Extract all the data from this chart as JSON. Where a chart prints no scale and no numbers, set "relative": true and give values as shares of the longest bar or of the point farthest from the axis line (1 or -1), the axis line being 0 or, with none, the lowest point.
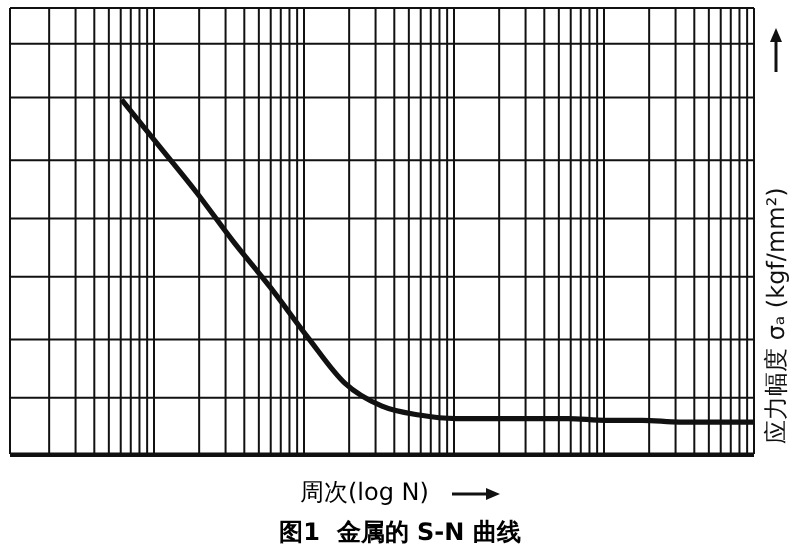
{
  "chart_data": {
    "type": "line",
    "title": "图1  金属的 S-N 曲线",
    "xlabel": "周次(log N)",
    "ylabel": "应力幅度 σₐ (kgf/mm²)",
    "relative": true,
    "grid": true,
    "marker": "none",
    "line_style": "solid",
    "categories": [
      null,
      null,
      null,
      null,
      null,
      null,
      null,
      null,
      null,
      null,
      null,
      null,
      null,
      null,
      null,
      null,
      null,
      null,
      null,
      null,
      null
    ],
    "series": [
      {
        "color": "#111111",
        "values": [
          null,
          null,
          null,
          1,
          0.87,
          0.74,
          0.6,
          0.47,
          0.33,
          0.2,
          0.135,
          0.11,
          0.1,
          0.1,
          0.1,
          0.1,
          0.095,
          0.095,
          0.09,
          0.09,
          0.09
        ]
      }
    ]
  }
}
